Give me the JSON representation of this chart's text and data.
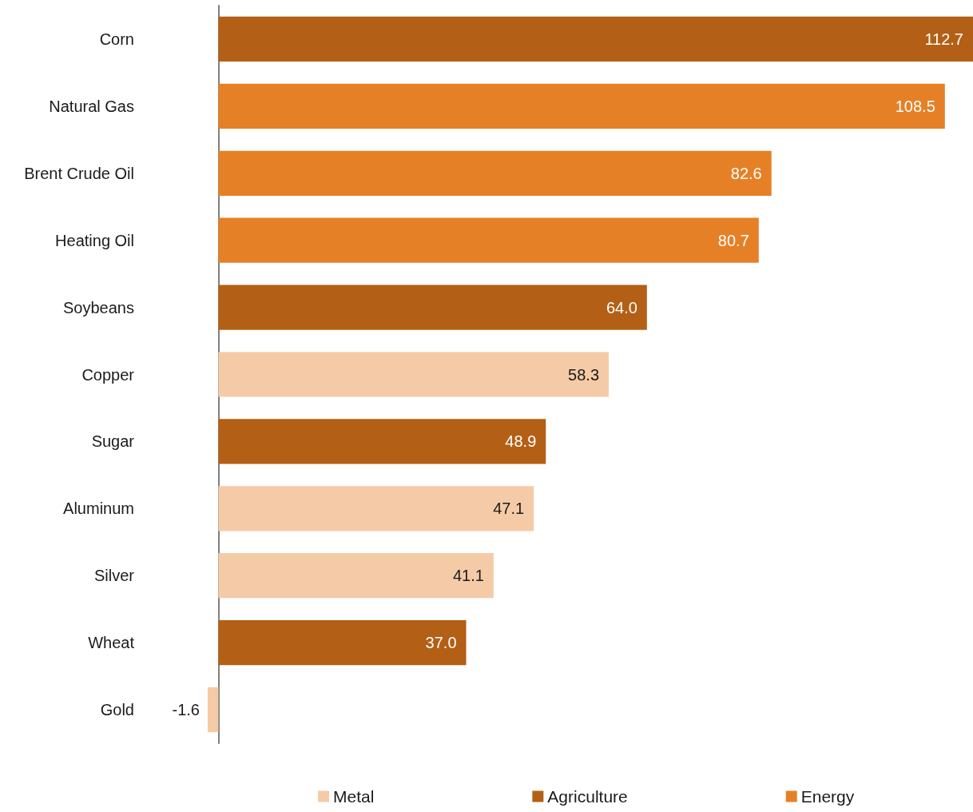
{
  "chart_data": {
    "type": "bar",
    "orientation": "horizontal",
    "stacked": true,
    "legend": "bottom",
    "tick_labels": "y",
    "categories": [
      "Corn",
      "Natural Gas",
      "Brent Crude Oil",
      "Heating Oil",
      "Soybeans",
      "Copper",
      "Sugar",
      "Aluminum",
      "Silver",
      "Wheat",
      "Gold"
    ],
    "series": [
      {
        "name": "Metal",
        "color": "#f5cba7",
        "values": [
          null,
          null,
          null,
          null,
          null,
          58.3,
          null,
          47.1,
          41.1,
          null,
          -1.6
        ],
        "value_labels": [
          null,
          null,
          null,
          null,
          null,
          "58.3",
          null,
          "47.1",
          "41.1",
          null,
          "-1.6"
        ]
      },
      {
        "name": "Agriculture",
        "color": "#b35f15",
        "values": [
          112.7,
          null,
          null,
          null,
          64.0,
          null,
          48.9,
          null,
          null,
          37.0,
          null
        ],
        "value_labels": [
          "112.7",
          null,
          null,
          null,
          "64.0",
          null,
          "48.9",
          null,
          null,
          "37.0",
          null
        ]
      },
      {
        "name": "Energy",
        "color": "#e68026",
        "values": [
          null,
          108.5,
          82.6,
          80.7,
          null,
          null,
          null,
          null,
          null,
          null,
          null
        ],
        "value_labels": [
          null,
          "108.5",
          "82.6",
          "80.7",
          null,
          null,
          null,
          null,
          null,
          null,
          null
        ]
      }
    ]
  }
}
